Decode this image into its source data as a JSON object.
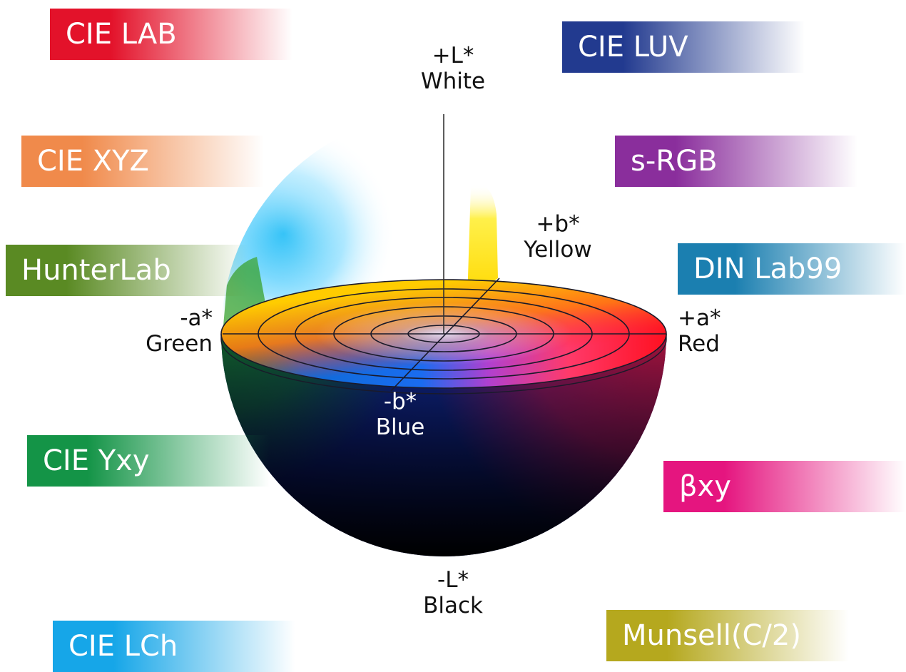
{
  "color_spaces": [
    {
      "id": "cie-lab",
      "label": "CIE LAB",
      "color": "#e3122a"
    },
    {
      "id": "cie-luv",
      "label": "CIE LUV",
      "color": "#223a8f"
    },
    {
      "id": "cie-xyz",
      "label": "CIE XYZ",
      "color": "#f08a4b"
    },
    {
      "id": "srgb",
      "label": "s-RGB",
      "color": "#8a2e9c"
    },
    {
      "id": "hunterlab",
      "label": "HunterLab",
      "color": "#5a8a23"
    },
    {
      "id": "din",
      "label": "DIN Lab99",
      "color": "#1b7fb0"
    },
    {
      "id": "cie-yxy",
      "label": "CIE Yxy",
      "color": "#149447"
    },
    {
      "id": "bxy",
      "label": "βxy",
      "color": "#e5157f"
    },
    {
      "id": "munsell",
      "label": "Munsell(C/2)",
      "color": "#b5a81e"
    },
    {
      "id": "cie-lch",
      "label": "CIE LCh",
      "color": "#16a6e8"
    }
  ],
  "axes": {
    "l_plus": {
      "symbol": "+L*",
      "name": "White"
    },
    "b_plus": {
      "symbol": "+b*",
      "name": "Yellow"
    },
    "a_minus": {
      "symbol": "-a*",
      "name": "Green"
    },
    "a_plus": {
      "symbol": "+a*",
      "name": "Red"
    },
    "b_minus": {
      "symbol": "-b*",
      "name": "Blue"
    },
    "l_minus": {
      "symbol": "-L*",
      "name": "Black"
    }
  }
}
